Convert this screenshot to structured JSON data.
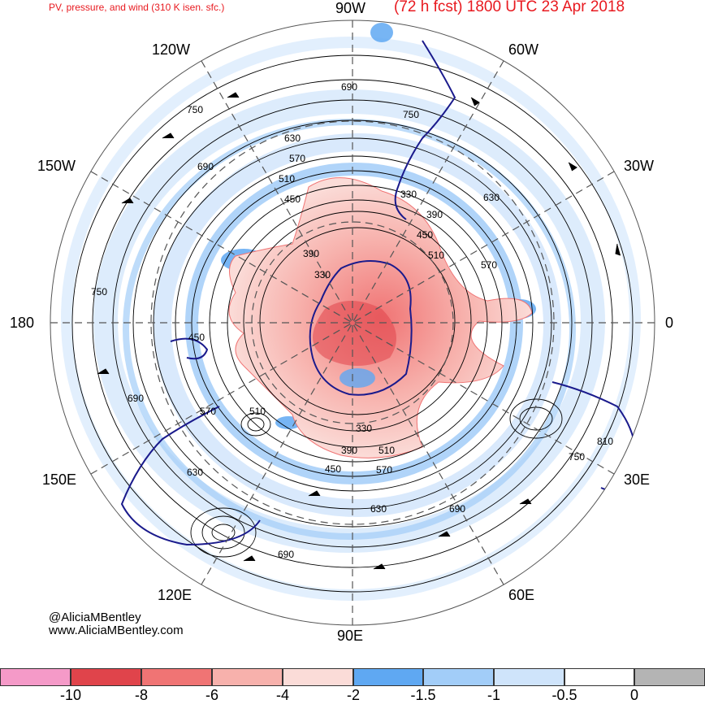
{
  "header": {
    "left_title": "PV, pressure, and wind (310 K isen. sfc.)",
    "right_title": "(72 h fcst) 1800 UTC 23 Apr 2018"
  },
  "longitude_labels": {
    "w90": "90W",
    "w60": "60W",
    "w120": "120W",
    "w150": "150W",
    "w30": "30W",
    "e180": "180",
    "e0": "0",
    "e150": "150E",
    "e30": "30E",
    "e120": "120E",
    "e60": "60E",
    "e90": "90E"
  },
  "pressure_contour_labels": [
    "330",
    "390",
    "450",
    "510",
    "570",
    "630",
    "690",
    "750",
    "810"
  ],
  "credits": {
    "handle": "@AliciaMBentley",
    "website": "www.AliciaMBentley.com"
  },
  "colorbar": {
    "segments": [
      {
        "color": "#f59ac8"
      },
      {
        "color": "#e0444b"
      },
      {
        "color": "#f07474"
      },
      {
        "color": "#f7b1ac"
      },
      {
        "color": "#fbdcd8"
      },
      {
        "color": "#5fa8f2"
      },
      {
        "color": "#a2cdf8"
      },
      {
        "color": "#cfe4fb"
      },
      {
        "color": "#ffffff"
      },
      {
        "color": "#b4b4b4"
      }
    ],
    "ticks": [
      "-10",
      "-8",
      "-6",
      "-4",
      "-2",
      "-1.5",
      "-1",
      "-0.5",
      "0"
    ]
  }
}
